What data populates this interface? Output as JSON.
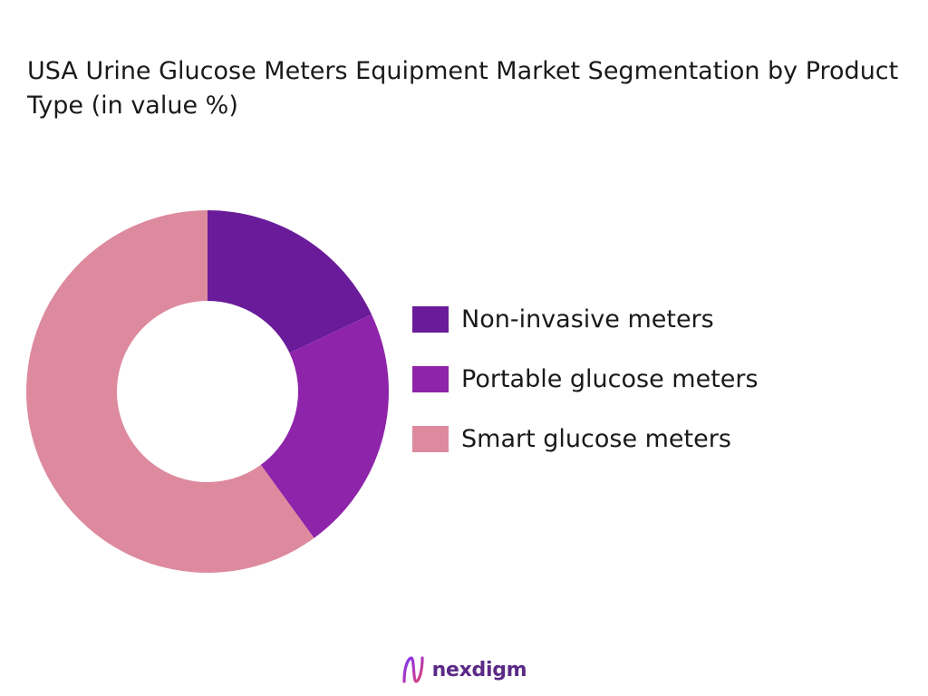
{
  "chart_data": {
    "type": "pie",
    "title": "USA Urine Glucose Meters Equipment Market Segmentation by Product Type (in value %)",
    "categories": [
      "Non-invasive meters",
      "Portable glucose meters",
      "Smart glucose meters"
    ],
    "values": [
      18,
      22,
      60
    ],
    "colors": [
      "#6a1b9a",
      "#8e24aa",
      "#dd8a9e"
    ],
    "hole": true,
    "legend_position": "right"
  },
  "branding": {
    "logo_text": "nexdigm",
    "logo_icon": "nexdigm-wave-icon"
  }
}
